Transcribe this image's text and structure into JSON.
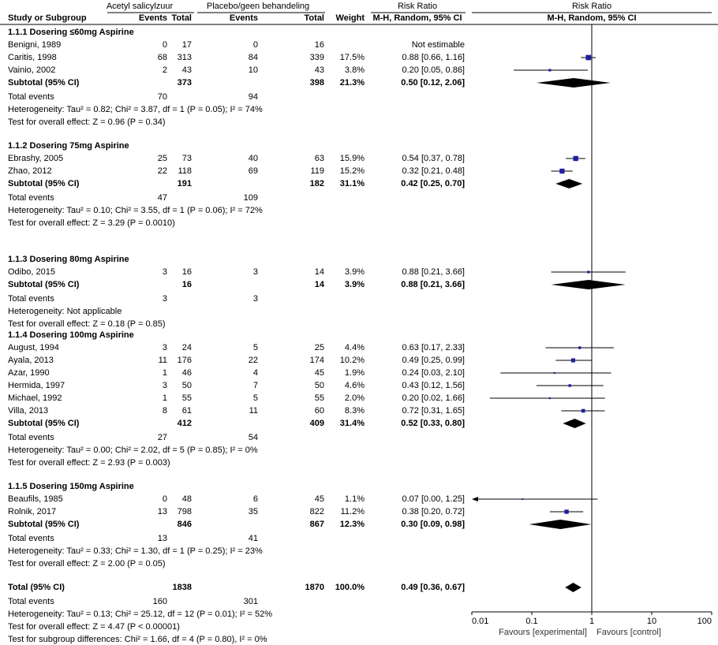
{
  "header": {
    "exp_group": "Acetyl salicylzuur",
    "ctrl_group": "Placebo/geen behandeling",
    "rr_title": "Risk Ratio",
    "rr_title_plot": "Risk Ratio",
    "study": "Study or Subgroup",
    "events_exp": "Events",
    "total_exp": "Total",
    "events_ctrl": "Events",
    "total_ctrl": "Total",
    "weight": "Weight",
    "method": "M-H, Random, 95% CI",
    "method_plot": "M-H, Random, 95% CI"
  },
  "groups": [
    {
      "title": "1.1.1 Dosering ≤60mg Aspirine",
      "studies": [
        {
          "name": "Benigni, 1989",
          "e_ev": "0",
          "e_tot": "17",
          "c_ev": "0",
          "c_tot": "16",
          "weight": "",
          "ci_text": "Not estimable",
          "rr": null,
          "lo": null,
          "hi": null,
          "w": 0
        },
        {
          "name": "Caritis, 1998",
          "e_ev": "68",
          "e_tot": "313",
          "c_ev": "84",
          "c_tot": "339",
          "weight": "17.5%",
          "ci_text": "0.88 [0.66, 1.16]",
          "rr": 0.88,
          "lo": 0.66,
          "hi": 1.16,
          "w": 17.5
        },
        {
          "name": "Vainio, 2002",
          "e_ev": "2",
          "e_tot": "43",
          "c_ev": "10",
          "c_tot": "43",
          "weight": "3.8%",
          "ci_text": "0.20 [0.05, 0.86]",
          "rr": 0.2,
          "lo": 0.05,
          "hi": 0.86,
          "w": 3.8
        }
      ],
      "subtotal": {
        "label": "Subtotal (95% CI)",
        "e_tot": "373",
        "c_tot": "398",
        "weight": "21.3%",
        "ci_text": "0.50 [0.12, 2.06]",
        "rr": 0.5,
        "lo": 0.12,
        "hi": 2.06
      },
      "total_events": {
        "label": "Total events",
        "e": "70",
        "c": "94"
      },
      "heterogeneity": "Heterogeneity: Tau² = 0.82; Chi² = 3.87, df = 1 (P = 0.05); I² = 74%",
      "overall": "Test for overall effect: Z = 0.96 (P = 0.34)"
    },
    {
      "title": "1.1.2 Dosering 75mg Aspirine",
      "studies": [
        {
          "name": "Ebrashy, 2005",
          "e_ev": "25",
          "e_tot": "73",
          "c_ev": "40",
          "c_tot": "63",
          "weight": "15.9%",
          "ci_text": "0.54 [0.37, 0.78]",
          "rr": 0.54,
          "lo": 0.37,
          "hi": 0.78,
          "w": 15.9
        },
        {
          "name": "Zhao, 2012",
          "e_ev": "22",
          "e_tot": "118",
          "c_ev": "69",
          "c_tot": "119",
          "weight": "15.2%",
          "ci_text": "0.32 [0.21, 0.48]",
          "rr": 0.32,
          "lo": 0.21,
          "hi": 0.48,
          "w": 15.2
        }
      ],
      "subtotal": {
        "label": "Subtotal (95% CI)",
        "e_tot": "191",
        "c_tot": "182",
        "weight": "31.1%",
        "ci_text": "0.42 [0.25, 0.70]",
        "rr": 0.42,
        "lo": 0.25,
        "hi": 0.7
      },
      "total_events": {
        "label": "Total events",
        "e": "47",
        "c": "109"
      },
      "heterogeneity": "Heterogeneity: Tau² = 0.10; Chi² = 3.55, df = 1 (P = 0.06); I² = 72%",
      "overall": "Test for overall effect: Z = 3.29 (P = 0.0010)"
    },
    {
      "title": "1.1.3 Dosering 80mg Aspirine",
      "studies": [
        {
          "name": "Odibo, 2015",
          "e_ev": "3",
          "e_tot": "16",
          "c_ev": "3",
          "c_tot": "14",
          "weight": "3.9%",
          "ci_text": "0.88 [0.21, 3.66]",
          "rr": 0.88,
          "lo": 0.21,
          "hi": 3.66,
          "w": 3.9
        }
      ],
      "subtotal": {
        "label": "Subtotal (95% CI)",
        "e_tot": "16",
        "c_tot": "14",
        "weight": "3.9%",
        "ci_text": "0.88 [0.21, 3.66]",
        "rr": 0.88,
        "lo": 0.21,
        "hi": 3.66
      },
      "total_events": {
        "label": "Total events",
        "e": "3",
        "c": "3"
      },
      "heterogeneity": "Heterogeneity: Not applicable",
      "overall": "Test for overall effect: Z = 0.18 (P = 0.85)"
    },
    {
      "title": "1.1.4 Dosering 100mg Aspirine",
      "studies": [
        {
          "name": "August, 1994",
          "e_ev": "3",
          "e_tot": "24",
          "c_ev": "5",
          "c_tot": "25",
          "weight": "4.4%",
          "ci_text": "0.63 [0.17, 2.33]",
          "rr": 0.63,
          "lo": 0.17,
          "hi": 2.33,
          "w": 4.4
        },
        {
          "name": "Ayala, 2013",
          "e_ev": "11",
          "e_tot": "176",
          "c_ev": "22",
          "c_tot": "174",
          "weight": "10.2%",
          "ci_text": "0.49 [0.25, 0.99]",
          "rr": 0.49,
          "lo": 0.25,
          "hi": 0.99,
          "w": 10.2
        },
        {
          "name": "Azar, 1990",
          "e_ev": "1",
          "e_tot": "46",
          "c_ev": "4",
          "c_tot": "45",
          "weight": "1.9%",
          "ci_text": "0.24 [0.03, 2.10]",
          "rr": 0.24,
          "lo": 0.03,
          "hi": 2.1,
          "w": 1.9
        },
        {
          "name": "Hermida, 1997",
          "e_ev": "3",
          "e_tot": "50",
          "c_ev": "7",
          "c_tot": "50",
          "weight": "4.6%",
          "ci_text": "0.43 [0.12, 1.56]",
          "rr": 0.43,
          "lo": 0.12,
          "hi": 1.56,
          "w": 4.6
        },
        {
          "name": "Michael, 1992",
          "e_ev": "1",
          "e_tot": "55",
          "c_ev": "5",
          "c_tot": "55",
          "weight": "2.0%",
          "ci_text": "0.20 [0.02, 1.66]",
          "rr": 0.2,
          "lo": 0.02,
          "hi": 1.66,
          "w": 2.0
        },
        {
          "name": "Villa, 2013",
          "e_ev": "8",
          "e_tot": "61",
          "c_ev": "11",
          "c_tot": "60",
          "weight": "8.3%",
          "ci_text": "0.72 [0.31, 1.65]",
          "rr": 0.72,
          "lo": 0.31,
          "hi": 1.65,
          "w": 8.3
        }
      ],
      "subtotal": {
        "label": "Subtotal (95% CI)",
        "e_tot": "412",
        "c_tot": "409",
        "weight": "31.4%",
        "ci_text": "0.52 [0.33, 0.80]",
        "rr": 0.52,
        "lo": 0.33,
        "hi": 0.8
      },
      "total_events": {
        "label": "Total events",
        "e": "27",
        "c": "54"
      },
      "heterogeneity": "Heterogeneity: Tau² = 0.00; Chi² = 2.02, df = 5 (P = 0.85); I² = 0%",
      "overall": "Test for overall effect: Z = 2.93 (P = 0.003)"
    },
    {
      "title": "1.1.5 Dosering 150mg Aspirine",
      "studies": [
        {
          "name": "Beaufils, 1985",
          "e_ev": "0",
          "e_tot": "48",
          "c_ev": "6",
          "c_tot": "45",
          "weight": "1.1%",
          "ci_text": "0.07 [0.00, 1.25]",
          "rr": 0.07,
          "lo": 0.0,
          "hi": 1.25,
          "w": 1.1
        },
        {
          "name": "Rolnik, 2017",
          "e_ev": "13",
          "e_tot": "798",
          "c_ev": "35",
          "c_tot": "822",
          "weight": "11.2%",
          "ci_text": "0.38 [0.20, 0.72]",
          "rr": 0.38,
          "lo": 0.2,
          "hi": 0.72,
          "w": 11.2
        }
      ],
      "subtotal": {
        "label": "Subtotal (95% CI)",
        "e_tot": "846",
        "c_tot": "867",
        "weight": "12.3%",
        "ci_text": "0.30 [0.09, 0.98]",
        "rr": 0.3,
        "lo": 0.09,
        "hi": 0.98
      },
      "total_events": {
        "label": "Total events",
        "e": "13",
        "c": "41"
      },
      "heterogeneity": "Heterogeneity: Tau² = 0.33; Chi² = 1.30, df = 1 (P = 0.25); I² = 23%",
      "overall": "Test for overall effect: Z = 2.00 (P = 0.05)"
    }
  ],
  "total": {
    "label": "Total (95% CI)",
    "e_tot": "1838",
    "c_tot": "1870",
    "weight": "100.0%",
    "ci_text": "0.49 [0.36, 0.67]",
    "rr": 0.49,
    "lo": 0.36,
    "hi": 0.67,
    "events_label": "Total events",
    "events_e": "160",
    "events_c": "301",
    "heterogeneity": "Heterogeneity: Tau² = 0.13; Chi² = 25.12, df = 12 (P = 0.01); I² = 52%",
    "overall": "Test for overall effect: Z = 4.47 (P < 0.00001)",
    "subgroup": "Test for subgroup differences: Chi² = 1.66, df = 4 (P = 0.80), I² = 0%"
  },
  "chart_data": {
    "type": "forest",
    "scale": "log",
    "xlim": [
      0.01,
      100
    ],
    "ticks": [
      0.01,
      0.1,
      1,
      10,
      100
    ],
    "tick_labels": [
      "0.01",
      "0.1",
      "1",
      "10",
      "100"
    ],
    "favours_left": "Favours [experimental]",
    "favours_right": "Favours [control]",
    "reference_line": 1,
    "colors": {
      "study_marker": "#1f1f9f",
      "line": "#000000"
    }
  }
}
